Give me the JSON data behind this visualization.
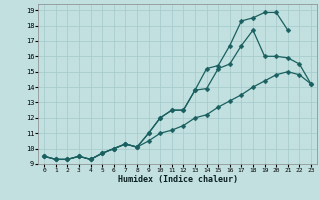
{
  "xlabel": "Humidex (Indice chaleur)",
  "bg_color": "#c2e0e0",
  "grid_color": "#a8cccc",
  "line_color": "#1a6060",
  "xlim": [
    -0.5,
    23.5
  ],
  "ylim": [
    9,
    19.4
  ],
  "xticks": [
    0,
    1,
    2,
    3,
    4,
    5,
    6,
    7,
    8,
    9,
    10,
    11,
    12,
    13,
    14,
    15,
    16,
    17,
    18,
    19,
    20,
    21,
    22,
    23
  ],
  "yticks": [
    9,
    10,
    11,
    12,
    13,
    14,
    15,
    16,
    17,
    18,
    19
  ],
  "line1_x": [
    0,
    1,
    2,
    3,
    4,
    5,
    6,
    7,
    8,
    9,
    10,
    11,
    12,
    13,
    14,
    15,
    16,
    17,
    18,
    19,
    20,
    21,
    22,
    23
  ],
  "line1_y": [
    9.5,
    9.3,
    9.3,
    9.5,
    9.3,
    9.7,
    10.0,
    10.3,
    10.1,
    10.5,
    11.0,
    11.2,
    11.5,
    12.0,
    12.2,
    12.7,
    13.1,
    13.5,
    14.0,
    14.4,
    14.8,
    15.0,
    14.8,
    14.2
  ],
  "line2_x": [
    0,
    1,
    2,
    3,
    4,
    5,
    6,
    7,
    8,
    9,
    10,
    11,
    12,
    13,
    14,
    15,
    16,
    17,
    18,
    19,
    20,
    21,
    22,
    23
  ],
  "line2_y": [
    9.5,
    9.3,
    9.3,
    9.5,
    9.3,
    9.7,
    10.0,
    10.3,
    10.1,
    11.0,
    12.0,
    12.5,
    12.5,
    13.8,
    13.9,
    15.2,
    15.5,
    16.7,
    17.7,
    16.0,
    16.0,
    15.9,
    15.5,
    14.2
  ],
  "line3_x": [
    0,
    1,
    2,
    3,
    4,
    5,
    6,
    7,
    8,
    9,
    10,
    11,
    12,
    13,
    14,
    15,
    16,
    17,
    18,
    19,
    20,
    21
  ],
  "line3_y": [
    9.5,
    9.3,
    9.3,
    9.5,
    9.3,
    9.7,
    10.0,
    10.3,
    10.1,
    11.0,
    12.0,
    12.5,
    12.5,
    13.8,
    15.2,
    15.4,
    16.7,
    18.3,
    18.5,
    18.85,
    18.85,
    17.7
  ],
  "marker_size": 2.5,
  "linewidth": 0.9
}
